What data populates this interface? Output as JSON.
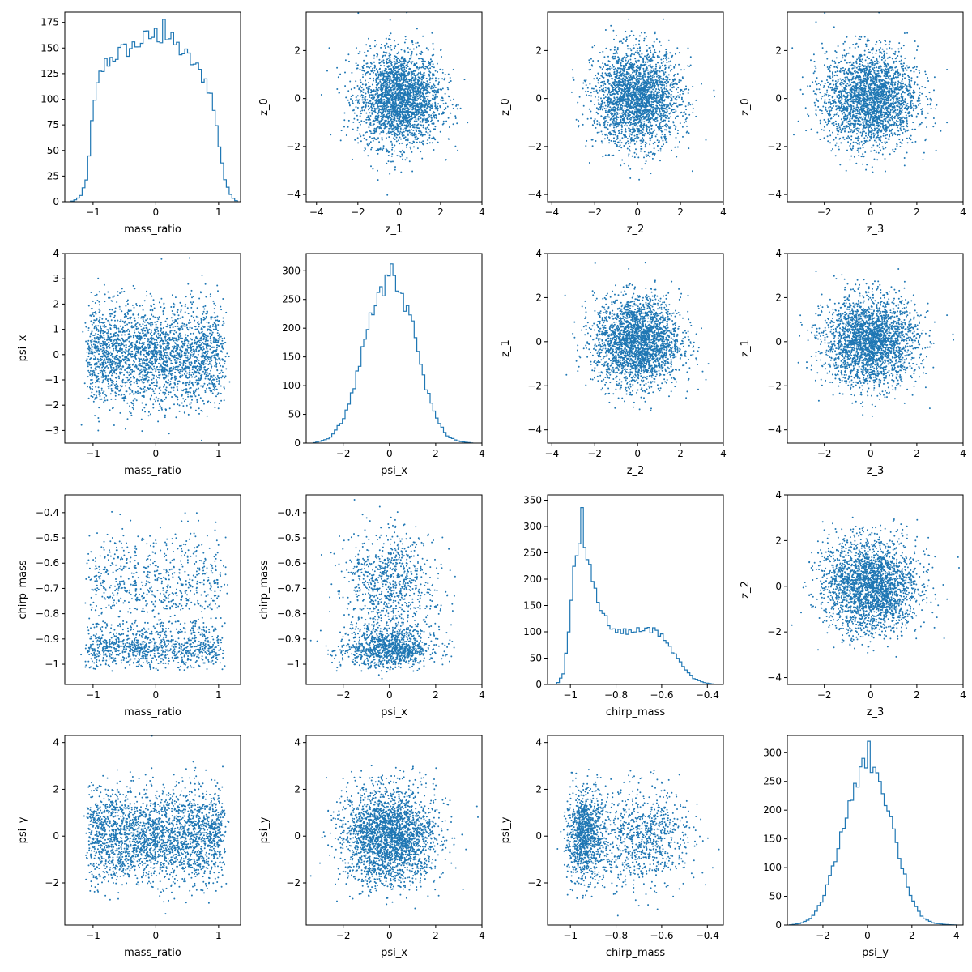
{
  "figure": {
    "background": "#ffffff",
    "series_color": "#1f77b4",
    "axis_color": "#000000"
  },
  "chart_data": [
    {
      "type": "histogram-step",
      "xlabel": "mass_ratio",
      "ylabel": "",
      "xlim": [
        -1.45,
        1.35
      ],
      "ylim": [
        0,
        185
      ],
      "xticks": [
        -1,
        0,
        1
      ],
      "yticks": [
        0,
        25,
        50,
        75,
        100,
        125,
        150,
        175
      ],
      "profile": [
        [
          -1.35,
          0
        ],
        [
          -1.28,
          2
        ],
        [
          -1.2,
          5
        ],
        [
          -1.1,
          22
        ],
        [
          -1.0,
          88
        ],
        [
          -0.9,
          122
        ],
        [
          -0.8,
          135
        ],
        [
          -0.6,
          145
        ],
        [
          -0.4,
          150
        ],
        [
          -0.2,
          158
        ],
        [
          0.0,
          163
        ],
        [
          0.2,
          160
        ],
        [
          0.4,
          148
        ],
        [
          0.6,
          135
        ],
        [
          0.8,
          118
        ],
        [
          0.9,
          100
        ],
        [
          1.0,
          60
        ],
        [
          1.1,
          22
        ],
        [
          1.2,
          5
        ],
        [
          1.3,
          0
        ]
      ],
      "peak": [
        0.12,
        178
      ]
    },
    {
      "type": "scatter",
      "xlabel": "z_1",
      "ylabel": "z_0",
      "xlim": [
        -4.5,
        4.0
      ],
      "ylim": [
        -4.3,
        3.6
      ],
      "xticks": [
        -4,
        -2,
        0,
        2,
        4
      ],
      "yticks": [
        -4,
        -2,
        0,
        2
      ],
      "x_distribution": "normal(0,1)",
      "y_distribution": "normal(0,1)"
    },
    {
      "type": "scatter",
      "xlabel": "z_2",
      "ylabel": "z_0",
      "xlim": [
        -4.2,
        4.0
      ],
      "ylim": [
        -4.3,
        3.6
      ],
      "xticks": [
        -4,
        -2,
        0,
        2,
        4
      ],
      "yticks": [
        -4,
        -2,
        0,
        2
      ],
      "x_distribution": "normal(0,1)",
      "y_distribution": "normal(0,1)"
    },
    {
      "type": "scatter",
      "xlabel": "z_3",
      "ylabel": "z_0",
      "xlim": [
        -3.6,
        4.0
      ],
      "ylim": [
        -4.3,
        3.6
      ],
      "xticks": [
        -2,
        0,
        2,
        4
      ],
      "yticks": [
        -4,
        -2,
        0,
        2
      ],
      "x_distribution": "normal(0,1)",
      "y_distribution": "normal(0,1)"
    },
    {
      "type": "scatter",
      "xlabel": "mass_ratio",
      "ylabel": "psi_x",
      "xlim": [
        -1.45,
        1.35
      ],
      "ylim": [
        -3.5,
        4.0
      ],
      "xticks": [
        -1,
        0,
        1
      ],
      "yticks": [
        -3,
        -2,
        -1,
        0,
        1,
        2,
        3,
        4
      ],
      "x_distribution": "bimodal-uniform(-1.1,1.1)",
      "y_distribution": "normal(0,1)"
    },
    {
      "type": "histogram-step",
      "xlabel": "psi_x",
      "ylabel": "",
      "xlim": [
        -3.6,
        4.0
      ],
      "ylim": [
        0,
        330
      ],
      "xticks": [
        -2,
        0,
        2,
        4
      ],
      "yticks": [
        0,
        50,
        100,
        150,
        200,
        250,
        300
      ],
      "profile": [
        [
          -3.3,
          0
        ],
        [
          -2.6,
          8
        ],
        [
          -2.0,
          40
        ],
        [
          -1.5,
          100
        ],
        [
          -1.0,
          195
        ],
        [
          -0.5,
          255
        ],
        [
          0.0,
          285
        ],
        [
          0.5,
          262
        ],
        [
          1.0,
          205
        ],
        [
          1.5,
          110
        ],
        [
          2.0,
          45
        ],
        [
          2.5,
          12
        ],
        [
          3.0,
          3
        ],
        [
          3.6,
          0
        ]
      ],
      "peak": [
        0.05,
        312
      ]
    },
    {
      "type": "scatter",
      "xlabel": "z_2",
      "ylabel": "z_1",
      "xlim": [
        -4.2,
        4.0
      ],
      "ylim": [
        -4.6,
        4.0
      ],
      "xticks": [
        -4,
        -2,
        0,
        2,
        4
      ],
      "yticks": [
        -4,
        -2,
        0,
        2,
        4
      ],
      "x_distribution": "normal(0,1)",
      "y_distribution": "normal(0,1)"
    },
    {
      "type": "scatter",
      "xlabel": "z_3",
      "ylabel": "z_1",
      "xlim": [
        -3.6,
        4.0
      ],
      "ylim": [
        -4.6,
        4.0
      ],
      "xticks": [
        -2,
        0,
        2,
        4
      ],
      "yticks": [
        -4,
        -2,
        0,
        2,
        4
      ],
      "x_distribution": "normal(0,1)",
      "y_distribution": "normal(0,1)"
    },
    {
      "type": "scatter",
      "xlabel": "mass_ratio",
      "ylabel": "chirp_mass",
      "xlim": [
        -1.45,
        1.35
      ],
      "ylim": [
        -1.08,
        -0.33
      ],
      "xticks": [
        -1,
        0,
        1
      ],
      "yticks": [
        -1.0,
        -0.9,
        -0.8,
        -0.7,
        -0.6,
        -0.5,
        -0.4
      ],
      "x_distribution": "bimodal-uniform(-1.1,1.1)",
      "y_distribution": "bimodal(-0.93,-0.62)"
    },
    {
      "type": "scatter",
      "xlabel": "psi_x",
      "ylabel": "chirp_mass",
      "xlim": [
        -3.6,
        4.0
      ],
      "ylim": [
        -1.08,
        -0.33
      ],
      "xticks": [
        -2,
        0,
        2,
        4
      ],
      "yticks": [
        -1.0,
        -0.9,
        -0.8,
        -0.7,
        -0.6,
        -0.5,
        -0.4
      ],
      "x_distribution": "normal(0,1)",
      "y_distribution": "bimodal(-0.93,-0.62)"
    },
    {
      "type": "histogram-step",
      "xlabel": "chirp_mass",
      "ylabel": "",
      "xlim": [
        -1.1,
        -0.33
      ],
      "ylim": [
        0,
        360
      ],
      "xticks": [
        -1.0,
        -0.8,
        -0.6,
        -0.4
      ],
      "yticks": [
        0,
        50,
        100,
        150,
        200,
        250,
        300,
        350
      ],
      "profile": [
        [
          -1.06,
          0
        ],
        [
          -1.03,
          20
        ],
        [
          -1.0,
          130
        ],
        [
          -0.98,
          240
        ],
        [
          -0.96,
          285
        ],
        [
          -0.94,
          280
        ],
        [
          -0.92,
          240
        ],
        [
          -0.9,
          190
        ],
        [
          -0.88,
          160
        ],
        [
          -0.86,
          140
        ],
        [
          -0.84,
          120
        ],
        [
          -0.82,
          105
        ],
        [
          -0.78,
          100
        ],
        [
          -0.74,
          100
        ],
        [
          -0.7,
          103
        ],
        [
          -0.66,
          105
        ],
        [
          -0.62,
          100
        ],
        [
          -0.58,
          82
        ],
        [
          -0.54,
          55
        ],
        [
          -0.5,
          30
        ],
        [
          -0.46,
          12
        ],
        [
          -0.42,
          4
        ],
        [
          -0.38,
          1
        ],
        [
          -0.36,
          0
        ]
      ],
      "peak": [
        -0.955,
        336
      ]
    },
    {
      "type": "scatter",
      "xlabel": "z_3",
      "ylabel": "z_2",
      "xlim": [
        -3.6,
        4.0
      ],
      "ylim": [
        -4.3,
        4.0
      ],
      "xticks": [
        -2,
        0,
        2,
        4
      ],
      "yticks": [
        -4,
        -2,
        0,
        2,
        4
      ],
      "x_distribution": "normal(0,1)",
      "y_distribution": "normal(0,1)"
    },
    {
      "type": "scatter",
      "xlabel": "mass_ratio",
      "ylabel": "psi_y",
      "xlim": [
        -1.45,
        1.35
      ],
      "ylim": [
        -3.8,
        4.3
      ],
      "xticks": [
        -1,
        0,
        1
      ],
      "yticks": [
        -2,
        0,
        2,
        4
      ],
      "x_distribution": "bimodal-uniform(-1.1,1.1)",
      "y_distribution": "normal(0,1)"
    },
    {
      "type": "scatter",
      "xlabel": "psi_x",
      "ylabel": "psi_y",
      "xlim": [
        -3.6,
        4.0
      ],
      "ylim": [
        -3.8,
        4.3
      ],
      "xticks": [
        -2,
        0,
        2,
        4
      ],
      "yticks": [
        -2,
        0,
        2,
        4
      ],
      "x_distribution": "normal(0,1)",
      "y_distribution": "normal(0,1)"
    },
    {
      "type": "scatter",
      "xlabel": "chirp_mass",
      "ylabel": "psi_y",
      "xlim": [
        -1.1,
        -0.33
      ],
      "ylim": [
        -3.8,
        4.3
      ],
      "xticks": [
        -1.0,
        -0.8,
        -0.6,
        -0.4
      ],
      "yticks": [
        -2,
        0,
        2,
        4
      ],
      "x_distribution": "bimodal(-0.93,-0.62)",
      "y_distribution": "normal(0,1)"
    },
    {
      "type": "histogram-step",
      "xlabel": "psi_y",
      "ylabel": "",
      "xlim": [
        -3.6,
        4.3
      ],
      "ylim": [
        0,
        330
      ],
      "xticks": [
        -2,
        0,
        2,
        4
      ],
      "yticks": [
        0,
        50,
        100,
        150,
        200,
        250,
        300
      ],
      "profile": [
        [
          -3.5,
          0
        ],
        [
          -3.0,
          3
        ],
        [
          -2.5,
          12
        ],
        [
          -2.0,
          45
        ],
        [
          -1.5,
          105
        ],
        [
          -1.0,
          185
        ],
        [
          -0.5,
          250
        ],
        [
          0.0,
          290
        ],
        [
          0.5,
          262
        ],
        [
          1.0,
          195
        ],
        [
          1.5,
          110
        ],
        [
          2.0,
          45
        ],
        [
          2.5,
          12
        ],
        [
          3.0,
          3
        ],
        [
          3.5,
          1
        ],
        [
          4.0,
          0
        ]
      ],
      "peak": [
        0.0,
        320
      ]
    }
  ]
}
